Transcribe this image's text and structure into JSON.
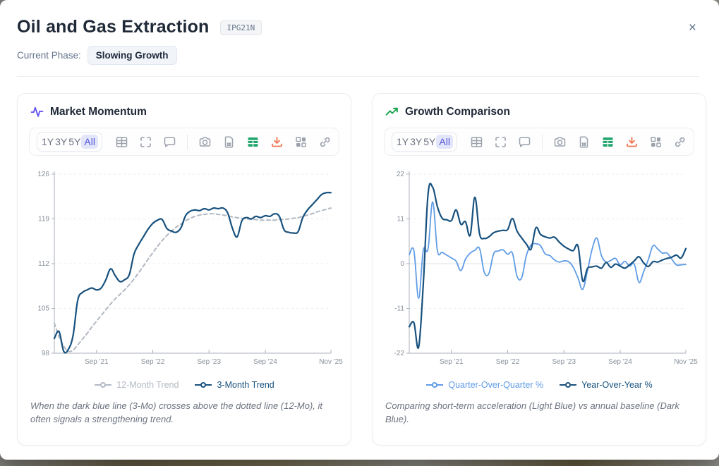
{
  "header": {
    "title": "Oil and Gas Extraction",
    "code_badge": "IPG21N",
    "phase_label": "Current Phase:",
    "phase_value": "Slowing Growth",
    "close_glyph": "×"
  },
  "toolbar": {
    "ranges": [
      "1Y",
      "3Y",
      "5Y",
      "All"
    ],
    "active_range": "All",
    "icon_names": [
      "data-table",
      "fullscreen",
      "comment",
      "camera",
      "report",
      "export-table",
      "download",
      "layout",
      "link"
    ],
    "accent_active_color": "#5457d6",
    "download_color": "#f0744e",
    "export_table_color": "#21a56d"
  },
  "panels": [
    {
      "title": "Market Momentum",
      "title_icon": "pulse-icon",
      "title_icon_color": "#6456f1",
      "caption": "When the dark blue line (3-Mo) crosses above the dotted line (12-Mo), it often signals a strengthening trend."
    },
    {
      "title": "Growth Comparison",
      "title_icon": "trending-up-icon",
      "title_icon_color": "#16a34a",
      "caption": "Comparing short-term acceleration (Light Blue) vs annual baseline (Dark Blue)."
    }
  ],
  "chart_data": [
    {
      "type": "line",
      "title": "Market Momentum",
      "x_start": "Dec 2020",
      "frequency": "monthly",
      "ylim": [
        98,
        126
      ],
      "y_ticks": [
        98,
        105,
        112,
        119,
        126
      ],
      "x_tick_labels": [
        "Sep '21",
        "Sep '22",
        "Sep '23",
        "Sep '24",
        "Nov '25"
      ],
      "x_tick_indices": [
        9,
        21,
        33,
        45,
        59
      ],
      "grid": "horizontal-dashed",
      "legend_position": "bottom",
      "series": [
        {
          "name": "12-Month Trend",
          "color": "#b2b9c3",
          "dash": "5 4",
          "width": 2,
          "values": [
            102.7,
            100.6,
            99.1,
            98.3,
            98.5,
            99.3,
            100.2,
            101.1,
            102.1,
            103.0,
            103.9,
            104.8,
            105.7,
            106.5,
            107.2,
            107.9,
            108.7,
            109.6,
            110.6,
            111.6,
            112.7,
            113.7,
            114.7,
            115.6,
            116.4,
            117.1,
            117.7,
            118.2,
            118.7,
            119.1,
            119.4,
            119.6,
            119.7,
            119.8,
            119.8,
            119.7,
            119.6,
            119.5,
            119.3,
            119.2,
            119.1,
            119.0,
            118.9,
            118.9,
            118.8,
            118.8,
            118.8,
            118.8,
            118.9,
            118.9,
            119.0,
            119.1,
            119.2,
            119.4,
            119.6,
            119.8,
            120.1,
            120.3,
            120.5,
            120.7
          ]
        },
        {
          "name": "3-Month Trend",
          "color": "#17517e",
          "dash": "",
          "width": 2.2,
          "values": [
            100.3,
            101.4,
            98.3,
            98.6,
            100.8,
            106.3,
            107.5,
            107.9,
            108.2,
            107.9,
            108.2,
            109.5,
            111.2,
            110.1,
            109.2,
            109.5,
            110.3,
            113.5,
            115.0,
            116.2,
            117.4,
            118.3,
            118.8,
            118.9,
            117.5,
            117.1,
            116.9,
            117.6,
            119.5,
            120.2,
            120.4,
            120.3,
            120.6,
            120.4,
            120.7,
            120.6,
            120.7,
            119.9,
            117.5,
            116.2,
            118.7,
            119.2,
            119.0,
            119.4,
            119.2,
            119.5,
            119.4,
            119.8,
            119.4,
            117.3,
            116.9,
            116.8,
            117.0,
            119.2,
            120.4,
            121.2,
            122.0,
            122.8,
            123.1,
            123.1
          ]
        }
      ]
    },
    {
      "type": "line",
      "title": "Growth Comparison",
      "x_start": "Dec 2020",
      "frequency": "monthly",
      "ylim": [
        -22,
        22
      ],
      "y_ticks": [
        -22,
        -11,
        0,
        11,
        22
      ],
      "x_tick_labels": [
        "Sep '21",
        "Sep '22",
        "Sep '23",
        "Sep '24",
        "Nov '25"
      ],
      "x_tick_indices": [
        9,
        21,
        33,
        45,
        59
      ],
      "grid": "horizontal-dashed",
      "legend_position": "bottom",
      "series": [
        {
          "name": "Quarter-Over-Quarter %",
          "color": "#5f9ce6",
          "dash": "",
          "width": 1.8,
          "values": [
            2.2,
            3.2,
            -8.5,
            3.3,
            3.6,
            15.2,
            3.2,
            2.8,
            2.1,
            1.4,
            0.6,
            -1.7,
            1.1,
            2.6,
            3.3,
            3.7,
            -2.1,
            -2.4,
            2.4,
            3.1,
            3.4,
            2.3,
            2.6,
            -3.1,
            -3.4,
            2.1,
            4.6,
            4.9,
            4.4,
            2.4,
            2.0,
            0.9,
            0.4,
            0.7,
            0.5,
            -0.9,
            -3.5,
            -6.3,
            -1.8,
            3.5,
            6.3,
            2.0,
            0.4,
            0.8,
            1.3,
            -0.3,
            0.6,
            -0.6,
            -0.1,
            -4.6,
            -2.0,
            1.0,
            4.4,
            3.6,
            2.6,
            2.6,
            1.1,
            -0.3,
            -0.3,
            -0.2
          ]
        },
        {
          "name": "Year-Over-Year %",
          "color": "#17517e",
          "dash": "",
          "width": 2.2,
          "values": [
            -15.5,
            -14.5,
            -20.5,
            -5.0,
            17.0,
            18.8,
            14.0,
            11.2,
            10.8,
            10.6,
            13.2,
            9.7,
            10.3,
            7.0,
            16.3,
            7.3,
            6.2,
            6.6,
            7.6,
            8.0,
            8.2,
            8.4,
            11.1,
            8.0,
            6.3,
            4.8,
            3.6,
            8.8,
            7.2,
            6.6,
            6.3,
            6.5,
            5.3,
            4.3,
            3.6,
            3.2,
            4.3,
            -4.2,
            -1.2,
            -0.8,
            -0.6,
            -1.1,
            0.3,
            -0.9,
            -0.1,
            -0.6,
            -1.1,
            -0.3,
            0.7,
            1.7,
            0.2,
            -0.7,
            0.5,
            0.4,
            0.9,
            1.3,
            1.6,
            2.1,
            1.4,
            3.7
          ]
        }
      ]
    }
  ]
}
